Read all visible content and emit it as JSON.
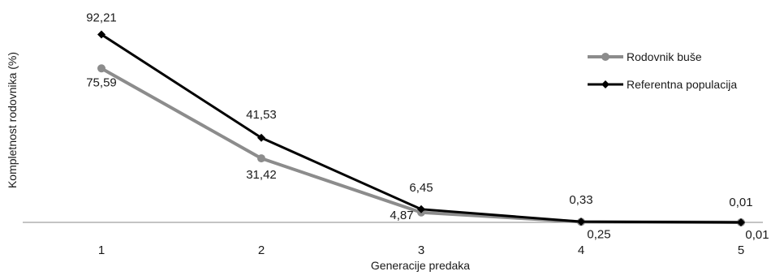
{
  "chart_data": {
    "type": "line",
    "title": "",
    "xlabel": "Generacije predaka",
    "ylabel": "Kompletnost rodovnika (%)",
    "categories": [
      "1",
      "2",
      "3",
      "4",
      "5"
    ],
    "ylim": [
      0,
      100
    ],
    "grid": false,
    "legend_position": "top-right",
    "series": [
      {
        "name": "Rodovnik buše",
        "values": [
          75.59,
          31.42,
          4.87,
          0.25,
          0.01
        ],
        "labels": [
          "75,59",
          "31,42",
          "4,87",
          "0,25",
          "0,01"
        ],
        "color": "#8c8c8c",
        "marker": "circle"
      },
      {
        "name": "Referentna populacija",
        "values": [
          92.21,
          41.53,
          6.45,
          0.33,
          0.01
        ],
        "labels": [
          "92,21",
          "41,53",
          "6,45",
          "0,33",
          "0,01"
        ],
        "color": "#000000",
        "marker": "diamond"
      }
    ]
  }
}
